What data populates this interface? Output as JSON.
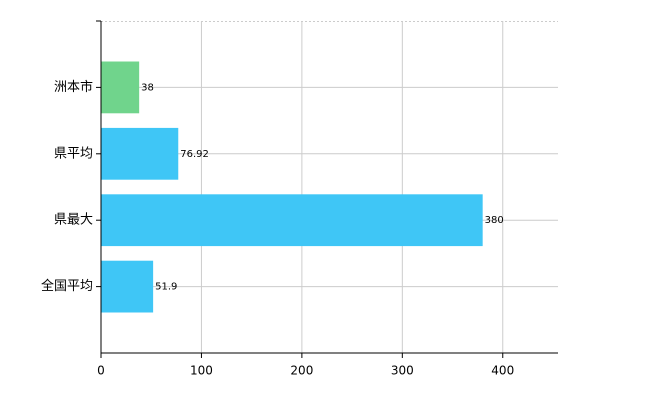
{
  "chart_data": {
    "type": "hbar",
    "categories": [
      "洲本市",
      "県平均",
      "県最大",
      "全国平均"
    ],
    "values": [
      38,
      76.92,
      380,
      51.9
    ],
    "colors": [
      "#70d48c",
      "#3fc6f6",
      "#3fc6f6",
      "#3fc6f6"
    ],
    "xlim": [
      0,
      455
    ],
    "xticks": [
      0,
      100,
      200,
      300,
      400
    ],
    "grid": true
  }
}
